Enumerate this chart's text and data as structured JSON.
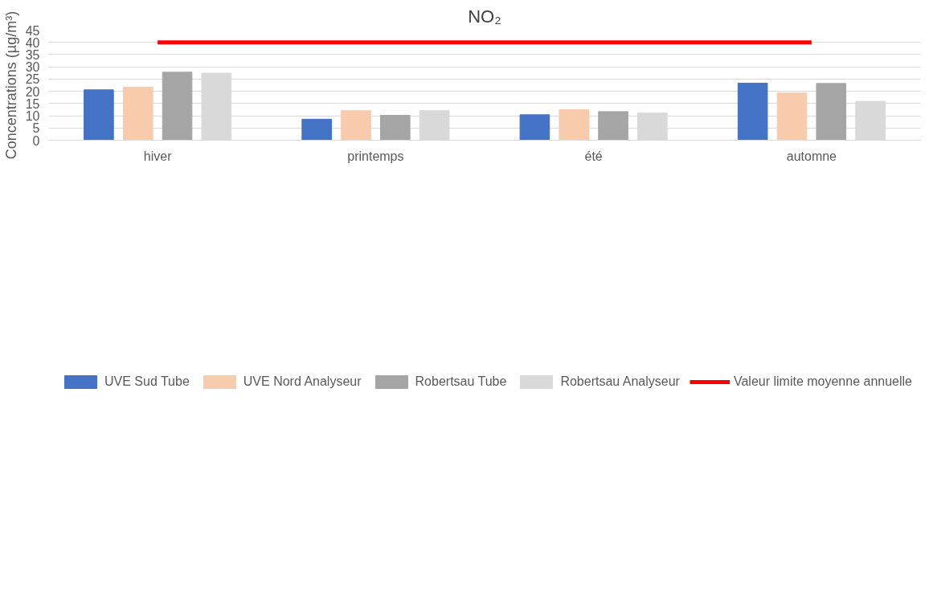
{
  "chart_data": {
    "type": "bar",
    "title": "NO₂",
    "ylabel": "Concentrations (µg/m³)",
    "categories": [
      "hiver",
      "printemps",
      "été",
      "automne"
    ],
    "series": [
      {
        "name": "UVE Sud Tube",
        "color": "#4472c4",
        "values": [
          20.6,
          8.6,
          10.4,
          23.3
        ]
      },
      {
        "name": "UVE Nord Analyseur",
        "color": "#f8cbad",
        "values": [
          21.7,
          12.1,
          12.5,
          19.3
        ]
      },
      {
        "name": "Robertsau Tube",
        "color": "#a5a5a5",
        "values": [
          27.8,
          10.2,
          11.7,
          23.2
        ]
      },
      {
        "name": "Robertsau Analyseur",
        "color": "#d9d9d9",
        "values": [
          27.4,
          12.1,
          11.1,
          15.9
        ]
      },
      {
        "name": "Valeur limite moyenne annuelle",
        "color": "#ff0000",
        "type": "line",
        "values": [
          40,
          40,
          40,
          40
        ]
      }
    ],
    "ylim": [
      0,
      45
    ],
    "yticks": [
      0,
      5,
      10,
      15,
      20,
      25,
      30,
      35,
      40,
      45
    ],
    "grid": "y",
    "legend": "bottom"
  }
}
